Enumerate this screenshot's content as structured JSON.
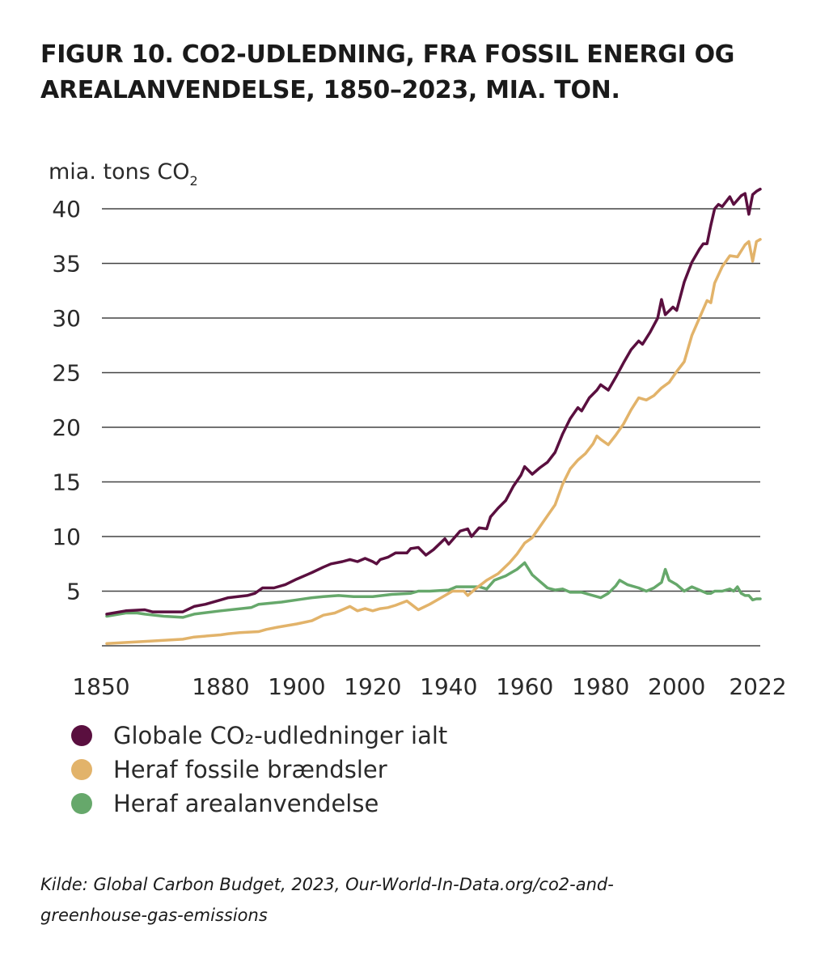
{
  "title_line1": "FIGUR 10. CO2-UDLEDNING, FRA FOSSIL ENERGI OG",
  "title_line2": "AREALANVENDELSE, 1850–2023, MIA. TON.",
  "source_line1": "Kilde: Global Carbon Budget, 2023, Our-World-In-Data.org/co2-and-",
  "source_line2": "greenhouse-gas-emissions",
  "chart_data": {
    "type": "line",
    "ylabel": "mia. tons CO",
    "ylabel_subscript": "2",
    "xlim": [
      1850,
      2022
    ],
    "ylim": [
      0,
      40
    ],
    "y_ticks": [
      5,
      10,
      15,
      20,
      25,
      30,
      35,
      40
    ],
    "y_tick_labels": [
      "5",
      "10",
      "15",
      "20",
      "25",
      "30",
      "35",
      "40"
    ],
    "x_ticks": [
      1850,
      1880,
      1900,
      1920,
      1940,
      1960,
      1980,
      2000,
      2022
    ],
    "x_tick_labels": [
      "1850",
      "1880",
      "1900",
      "1920",
      "1940",
      "1960",
      "1980",
      "2000",
      "2022"
    ],
    "grid": "horizontal",
    "legend_position": "bottom",
    "series": [
      {
        "name": "Globale CO₂-udledninger ialt",
        "color": "#5a0f3f",
        "points": [
          [
            1850,
            2.9
          ],
          [
            1855,
            3.2
          ],
          [
            1860,
            3.3
          ],
          [
            1862,
            3.1
          ],
          [
            1870,
            3.1
          ],
          [
            1873,
            3.6
          ],
          [
            1876,
            3.8
          ],
          [
            1880,
            4.2
          ],
          [
            1882,
            4.4
          ],
          [
            1887,
            4.6
          ],
          [
            1889,
            4.8
          ],
          [
            1891,
            5.3
          ],
          [
            1894,
            5.3
          ],
          [
            1897,
            5.6
          ],
          [
            1900,
            6.1
          ],
          [
            1904,
            6.7
          ],
          [
            1907,
            7.2
          ],
          [
            1909,
            7.5
          ],
          [
            1912,
            7.7
          ],
          [
            1914,
            7.9
          ],
          [
            1916,
            7.7
          ],
          [
            1918,
            8.0
          ],
          [
            1920,
            7.7
          ],
          [
            1921,
            7.5
          ],
          [
            1922,
            7.9
          ],
          [
            1924,
            8.1
          ],
          [
            1926,
            8.5
          ],
          [
            1929,
            8.5
          ],
          [
            1930,
            8.9
          ],
          [
            1932,
            9.0
          ],
          [
            1934,
            8.3
          ],
          [
            1936,
            8.8
          ],
          [
            1939,
            9.8
          ],
          [
            1940,
            9.3
          ],
          [
            1943,
            10.5
          ],
          [
            1945,
            10.7
          ],
          [
            1946,
            10.0
          ],
          [
            1948,
            10.8
          ],
          [
            1950,
            10.7
          ],
          [
            1951,
            11.8
          ],
          [
            1953,
            12.6
          ],
          [
            1955,
            13.3
          ],
          [
            1957,
            14.6
          ],
          [
            1959,
            15.6
          ],
          [
            1960,
            16.4
          ],
          [
            1962,
            15.7
          ],
          [
            1964,
            16.3
          ],
          [
            1966,
            16.8
          ],
          [
            1968,
            17.7
          ],
          [
            1970,
            19.4
          ],
          [
            1972,
            20.8
          ],
          [
            1974,
            21.8
          ],
          [
            1975,
            21.5
          ],
          [
            1977,
            22.7
          ],
          [
            1979,
            23.4
          ],
          [
            1980,
            23.9
          ],
          [
            1982,
            23.4
          ],
          [
            1984,
            24.6
          ],
          [
            1986,
            25.9
          ],
          [
            1988,
            27.1
          ],
          [
            1990,
            27.9
          ],
          [
            1991,
            27.6
          ],
          [
            1993,
            28.7
          ],
          [
            1995,
            30.0
          ],
          [
            1996,
            31.7
          ],
          [
            1997,
            30.3
          ],
          [
            1999,
            31.0
          ],
          [
            2000,
            30.7
          ],
          [
            2002,
            33.3
          ],
          [
            2004,
            35.1
          ],
          [
            2006,
            36.3
          ],
          [
            2007,
            36.8
          ],
          [
            2008,
            36.8
          ],
          [
            2009,
            38.5
          ],
          [
            2010,
            40.0
          ],
          [
            2011,
            40.4
          ],
          [
            2012,
            40.2
          ],
          [
            2014,
            41.1
          ],
          [
            2015,
            40.4
          ],
          [
            2017,
            41.2
          ],
          [
            2018,
            41.4
          ],
          [
            2019,
            39.5
          ],
          [
            2020,
            41.3
          ],
          [
            2021,
            41.6
          ],
          [
            2022,
            41.8
          ]
        ]
      },
      {
        "name": "Heraf fossile brændsler",
        "color": "#e2b36a",
        "points": [
          [
            1850,
            0.2
          ],
          [
            1860,
            0.4
          ],
          [
            1870,
            0.6
          ],
          [
            1873,
            0.8
          ],
          [
            1880,
            1.0
          ],
          [
            1882,
            1.1
          ],
          [
            1885,
            1.2
          ],
          [
            1890,
            1.3
          ],
          [
            1892,
            1.5
          ],
          [
            1895,
            1.7
          ],
          [
            1900,
            2.0
          ],
          [
            1904,
            2.3
          ],
          [
            1907,
            2.8
          ],
          [
            1910,
            3.0
          ],
          [
            1912,
            3.3
          ],
          [
            1914,
            3.6
          ],
          [
            1916,
            3.2
          ],
          [
            1918,
            3.4
          ],
          [
            1920,
            3.2
          ],
          [
            1922,
            3.4
          ],
          [
            1924,
            3.5
          ],
          [
            1926,
            3.7
          ],
          [
            1929,
            4.1
          ],
          [
            1932,
            3.3
          ],
          [
            1935,
            3.8
          ],
          [
            1938,
            4.4
          ],
          [
            1941,
            5.0
          ],
          [
            1944,
            5.0
          ],
          [
            1945,
            4.6
          ],
          [
            1947,
            5.2
          ],
          [
            1950,
            6.0
          ],
          [
            1953,
            6.6
          ],
          [
            1956,
            7.6
          ],
          [
            1958,
            8.4
          ],
          [
            1960,
            9.4
          ],
          [
            1962,
            9.9
          ],
          [
            1965,
            11.4
          ],
          [
            1968,
            12.9
          ],
          [
            1970,
            14.8
          ],
          [
            1972,
            16.2
          ],
          [
            1974,
            17.0
          ],
          [
            1976,
            17.6
          ],
          [
            1978,
            18.5
          ],
          [
            1979,
            19.2
          ],
          [
            1980,
            18.9
          ],
          [
            1982,
            18.4
          ],
          [
            1984,
            19.3
          ],
          [
            1986,
            20.3
          ],
          [
            1988,
            21.6
          ],
          [
            1990,
            22.7
          ],
          [
            1992,
            22.5
          ],
          [
            1994,
            22.9
          ],
          [
            1996,
            23.6
          ],
          [
            1998,
            24.1
          ],
          [
            2000,
            25.1
          ],
          [
            2002,
            26.0
          ],
          [
            2004,
            28.4
          ],
          [
            2006,
            30.0
          ],
          [
            2008,
            31.6
          ],
          [
            2009,
            31.4
          ],
          [
            2010,
            33.2
          ],
          [
            2012,
            34.7
          ],
          [
            2014,
            35.7
          ],
          [
            2016,
            35.6
          ],
          [
            2018,
            36.7
          ],
          [
            2019,
            37.0
          ],
          [
            2020,
            35.2
          ],
          [
            2021,
            37.0
          ],
          [
            2022,
            37.2
          ]
        ]
      },
      {
        "name": "Heraf arealanvendelse",
        "color": "#66a86b",
        "points": [
          [
            1850,
            2.7
          ],
          [
            1855,
            3.0
          ],
          [
            1858,
            3.0
          ],
          [
            1860,
            2.9
          ],
          [
            1865,
            2.7
          ],
          [
            1870,
            2.6
          ],
          [
            1873,
            2.9
          ],
          [
            1880,
            3.2
          ],
          [
            1888,
            3.5
          ],
          [
            1890,
            3.8
          ],
          [
            1893,
            3.9
          ],
          [
            1896,
            4.0
          ],
          [
            1900,
            4.2
          ],
          [
            1904,
            4.4
          ],
          [
            1907,
            4.5
          ],
          [
            1911,
            4.6
          ],
          [
            1915,
            4.5
          ],
          [
            1920,
            4.5
          ],
          [
            1925,
            4.7
          ],
          [
            1930,
            4.8
          ],
          [
            1932,
            5.0
          ],
          [
            1935,
            5.0
          ],
          [
            1940,
            5.1
          ],
          [
            1942,
            5.4
          ],
          [
            1946,
            5.4
          ],
          [
            1948,
            5.4
          ],
          [
            1950,
            5.2
          ],
          [
            1952,
            6.0
          ],
          [
            1955,
            6.4
          ],
          [
            1958,
            7.0
          ],
          [
            1960,
            7.6
          ],
          [
            1962,
            6.5
          ],
          [
            1964,
            5.9
          ],
          [
            1966,
            5.3
          ],
          [
            1968,
            5.1
          ],
          [
            1970,
            5.2
          ],
          [
            1972,
            4.9
          ],
          [
            1975,
            4.9
          ],
          [
            1978,
            4.6
          ],
          [
            1980,
            4.4
          ],
          [
            1982,
            4.8
          ],
          [
            1984,
            5.5
          ],
          [
            1985,
            6.0
          ],
          [
            1987,
            5.6
          ],
          [
            1990,
            5.3
          ],
          [
            1992,
            5.0
          ],
          [
            1994,
            5.3
          ],
          [
            1996,
            5.8
          ],
          [
            1997,
            7.0
          ],
          [
            1998,
            6.0
          ],
          [
            2000,
            5.6
          ],
          [
            2002,
            5.0
          ],
          [
            2004,
            5.4
          ],
          [
            2006,
            5.1
          ],
          [
            2008,
            4.8
          ],
          [
            2009,
            4.8
          ],
          [
            2010,
            5.0
          ],
          [
            2012,
            5.0
          ],
          [
            2014,
            5.2
          ],
          [
            2015,
            5.0
          ],
          [
            2016,
            5.4
          ],
          [
            2017,
            4.8
          ],
          [
            2018,
            4.6
          ],
          [
            2019,
            4.6
          ],
          [
            2020,
            4.2
          ],
          [
            2021,
            4.3
          ],
          [
            2022,
            4.3
          ]
        ]
      }
    ]
  },
  "legend": [
    {
      "label": "Globale CO₂-udledninger ialt",
      "color": "#5a0f3f"
    },
    {
      "label": "Heraf fossile brændsler",
      "color": "#e2b36a"
    },
    {
      "label": "Heraf arealanvendelse",
      "color": "#66a86b"
    }
  ]
}
